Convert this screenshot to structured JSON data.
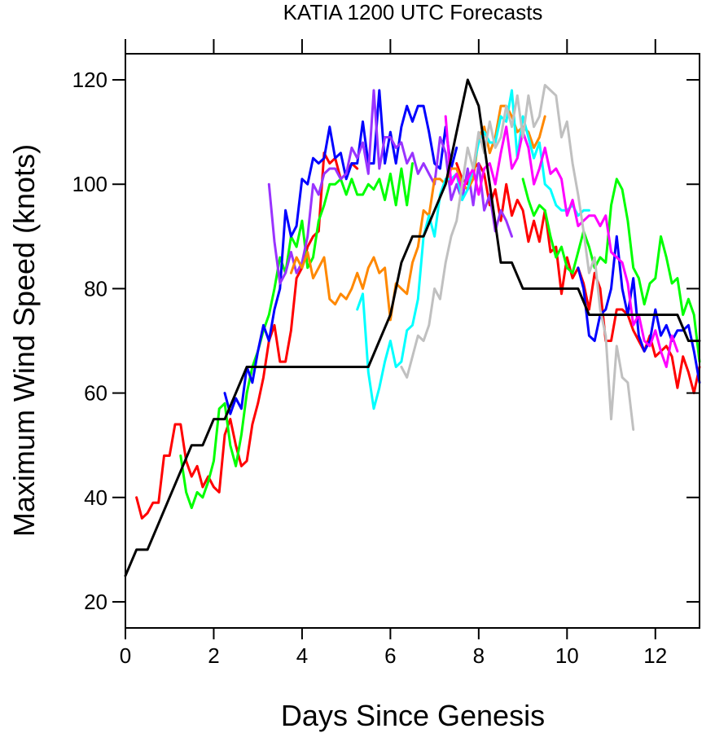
{
  "chart_data": {
    "type": "line",
    "title": "KATIA 1200 UTC Forecasts",
    "xlabel": "Days Since Genesis",
    "ylabel": "Maximum Wind Speed (knots)",
    "xlim": [
      0,
      13
    ],
    "ylim": [
      15,
      125
    ],
    "xticks": [
      0,
      2,
      4,
      6,
      8,
      10,
      12
    ],
    "yticks": [
      20,
      40,
      60,
      80,
      100,
      120
    ],
    "xtick_labels": [
      "0",
      "2",
      "4",
      "6",
      "8",
      "10",
      "12"
    ],
    "ytick_labels": [
      "20",
      "40",
      "60",
      "80",
      "100",
      "120"
    ],
    "grid": false,
    "legend": "none",
    "series": [
      {
        "color": "#000000",
        "role": "best-track",
        "x": [
          0,
          0.25,
          0.5,
          0.75,
          1.0,
          1.25,
          1.5,
          1.75,
          2.0,
          2.25,
          2.5,
          2.75,
          3.0,
          3.25,
          3.5,
          3.75,
          4.0,
          4.25,
          4.5,
          4.75,
          5.0,
          5.25,
          5.5,
          5.75,
          6.0,
          6.25,
          6.5,
          6.75,
          7.0,
          7.25,
          7.5,
          7.75,
          8.0,
          8.25,
          8.5,
          8.75,
          9.0,
          9.25,
          9.5,
          9.75,
          10.0,
          10.25,
          10.5,
          10.75,
          11.0,
          11.25,
          11.5,
          11.75,
          12.0,
          12.25,
          12.5,
          12.75,
          13.0
        ],
        "y": [
          25,
          30,
          30,
          35,
          40,
          45,
          50,
          50,
          55,
          55,
          60,
          65,
          65,
          65,
          65,
          65,
          65,
          65,
          65,
          65,
          65,
          65,
          65,
          70,
          75,
          85,
          90,
          90,
          95,
          100,
          110,
          120,
          115,
          100,
          85,
          85,
          80,
          80,
          80,
          80,
          80,
          80,
          75,
          75,
          75,
          75,
          75,
          75,
          75,
          75,
          75,
          70,
          70
        ]
      },
      {
        "color": "#ff0000",
        "x": [
          0.25,
          0.375,
          0.5,
          0.625,
          0.75,
          0.875,
          1.0,
          1.125,
          1.25,
          1.375,
          1.5,
          1.625,
          1.75,
          1.875,
          2.0,
          2.125,
          2.25,
          2.375,
          2.5,
          2.625,
          2.75,
          2.875,
          3.0,
          3.125,
          3.25,
          3.375,
          3.5,
          3.625,
          3.75,
          3.875,
          4.0,
          4.125,
          4.25,
          4.375,
          4.5
        ],
        "y": [
          40,
          36,
          37,
          39,
          39,
          48,
          48,
          54,
          54,
          47,
          44,
          46,
          42,
          44,
          42,
          41,
          52,
          55,
          50,
          46,
          47,
          54,
          58,
          63,
          70,
          73,
          66,
          66,
          72,
          82,
          84,
          88,
          90,
          91,
          106
        ]
      },
      {
        "color": "#ff0000",
        "x": [
          4.5,
          4.625,
          4.75,
          4.875,
          5.0,
          5.125,
          5.25
        ],
        "y": [
          106,
          104,
          105,
          101,
          102,
          104,
          103
        ]
      },
      {
        "color": "#ff0000",
        "x": [
          7.5,
          7.625,
          7.75,
          7.875,
          8.0,
          8.125,
          8.25,
          8.375,
          8.5,
          8.625,
          8.75,
          8.875,
          9.0,
          9.125,
          9.25,
          9.375,
          9.5,
          9.625,
          9.75,
          9.875,
          10.0,
          10.125,
          10.25,
          10.375,
          10.5,
          10.625,
          10.75
        ],
        "y": [
          104,
          101,
          100,
          103,
          104,
          102,
          96,
          99,
          93,
          100,
          94,
          97,
          95,
          89,
          93,
          89,
          95,
          87,
          88,
          79,
          86,
          82,
          84,
          81,
          76,
          83,
          80
        ]
      },
      {
        "color": "#ff0000",
        "x": [
          10.75,
          10.875,
          11.0,
          11.125,
          11.25,
          11.375,
          11.5,
          11.625,
          11.75,
          11.875,
          12.0,
          12.125,
          12.25,
          12.375,
          12.5,
          12.625,
          12.75,
          12.875,
          13.0
        ],
        "y": [
          80,
          70,
          70,
          76,
          76,
          75,
          72,
          70,
          68,
          71,
          67,
          68,
          69,
          67,
          61,
          67,
          64,
          60,
          65
        ]
      },
      {
        "color": "#00ff00",
        "x": [
          1.25,
          1.375,
          1.5,
          1.625,
          1.75,
          1.875,
          2.0,
          2.125,
          2.25,
          2.375,
          2.5,
          2.625,
          2.75,
          2.875,
          3.0,
          3.125,
          3.25,
          3.375,
          3.5,
          3.625,
          3.75,
          3.875,
          4.0,
          4.125,
          4.25,
          4.375,
          4.5,
          4.625,
          4.75,
          4.875,
          5.0,
          5.125,
          5.25,
          5.375,
          5.5,
          5.625,
          5.75,
          5.875,
          6.0,
          6.125,
          6.25,
          6.375,
          6.5
        ],
        "y": [
          48,
          41,
          38,
          41,
          40,
          43,
          47,
          57,
          58,
          50,
          46,
          52,
          60,
          65,
          68,
          72,
          75,
          80,
          86,
          83,
          90,
          88,
          93,
          84,
          86,
          93,
          96,
          100,
          100,
          101,
          98,
          101,
          98,
          98,
          100,
          99,
          101,
          97,
          102,
          96,
          103,
          96,
          104
        ]
      },
      {
        "color": "#00ff00",
        "x": [
          9.0,
          9.125,
          9.25,
          9.375,
          9.5,
          9.625,
          9.75,
          9.875,
          10.0,
          10.125,
          10.25,
          10.375,
          10.5,
          10.625,
          10.75,
          10.875,
          11.0,
          11.125,
          11.25,
          11.375,
          11.5,
          11.625,
          11.75,
          11.875,
          12.0,
          12.125,
          12.25,
          12.375,
          12.5,
          12.625,
          12.75,
          12.875,
          13.0
        ],
        "y": [
          101,
          97,
          94,
          96,
          95,
          90,
          86,
          88,
          84,
          83,
          87,
          91,
          88,
          84,
          86,
          85,
          96,
          101,
          99,
          93,
          84,
          82,
          77,
          81,
          82,
          90,
          86,
          81,
          82,
          75,
          78,
          75,
          66
        ]
      },
      {
        "color": "#0000ff",
        "x": [
          2.25,
          2.375,
          2.5,
          2.625,
          2.75,
          2.875,
          3.0,
          3.125,
          3.25,
          3.375,
          3.5,
          3.625,
          3.75,
          3.875,
          4.0,
          4.125,
          4.25,
          4.375,
          4.5,
          4.625,
          4.75,
          4.875,
          5.0,
          5.125,
          5.25,
          5.375,
          5.5,
          5.625,
          5.75,
          5.875,
          6.0,
          6.125,
          6.25,
          6.375,
          6.5,
          6.625,
          6.75,
          6.875,
          7.0,
          7.125,
          7.25,
          7.375,
          7.5
        ],
        "y": [
          60,
          56,
          59,
          57,
          65,
          62,
          68,
          73,
          70,
          76,
          80,
          95,
          90,
          92,
          101,
          100,
          105,
          104,
          105,
          111,
          105,
          106,
          101,
          104,
          104,
          112,
          104,
          104,
          118,
          104,
          110,
          104,
          111,
          115,
          112,
          115,
          115,
          110,
          104,
          103,
          111,
          103,
          107
        ]
      },
      {
        "color": "#0000ff",
        "x": [
          10.25,
          10.375,
          10.5,
          10.625,
          10.75,
          10.875,
          11.0,
          11.125,
          11.25,
          11.375,
          11.5,
          11.625,
          11.75,
          11.875,
          12.0,
          12.125,
          12.25,
          12.375,
          12.5,
          12.625,
          12.75,
          12.875,
          13.0
        ],
        "y": [
          84,
          80,
          71,
          70,
          75,
          76,
          80,
          90,
          80,
          75,
          82,
          71,
          68,
          70,
          76,
          71,
          73,
          70,
          72,
          72,
          73,
          68,
          62
        ]
      },
      {
        "color": "#9933ff",
        "x": [
          3.25,
          3.375,
          3.5,
          3.625,
          3.75,
          3.875,
          4.0,
          4.125,
          4.25,
          4.375,
          4.5,
          4.625,
          4.75,
          4.875,
          5.0,
          5.125,
          5.25,
          5.375,
          5.5,
          5.625,
          5.75,
          5.875,
          6.0,
          6.125,
          6.25,
          6.375,
          6.5,
          6.625,
          6.75,
          6.875,
          7.0,
          7.125,
          7.25,
          7.375,
          7.5,
          7.625,
          7.75,
          7.875,
          8.0,
          8.125,
          8.25,
          8.375,
          8.5,
          8.625,
          8.75
        ],
        "y": [
          100,
          89,
          81,
          83,
          87,
          83,
          85,
          90,
          100,
          98,
          102,
          103,
          103,
          101,
          102,
          107,
          105,
          108,
          102,
          118,
          103,
          109,
          109,
          107,
          108,
          104,
          106,
          102,
          104,
          102,
          100,
          109,
          106,
          97,
          100,
          97,
          103,
          96,
          104,
          95,
          98,
          91,
          95,
          93,
          90
        ]
      },
      {
        "color": "#ff8800",
        "x": [
          3.75,
          3.875,
          4.0,
          4.125,
          4.25,
          4.375,
          4.5,
          4.625,
          4.75,
          4.875,
          5.0,
          5.125,
          5.25,
          5.375,
          5.5,
          5.625,
          5.75,
          5.875,
          6.0,
          6.125,
          6.25,
          6.375,
          6.5,
          6.625,
          6.75,
          6.875,
          7.0,
          7.125,
          7.25,
          7.375,
          7.5,
          7.625,
          7.75,
          7.875,
          8.0,
          8.125,
          8.25,
          8.375,
          8.5,
          8.625,
          8.75,
          8.875,
          9.0,
          9.125,
          9.25,
          9.375,
          9.5
        ],
        "y": [
          83,
          86,
          84,
          87,
          82,
          84,
          86,
          78,
          77,
          79,
          78,
          80,
          83,
          80,
          84,
          86,
          83,
          84,
          74,
          81,
          80,
          79,
          85,
          88,
          95,
          94,
          101,
          101,
          100,
          103,
          103,
          100,
          99,
          101,
          109,
          111,
          106,
          109,
          115,
          115,
          113,
          110,
          111,
          110,
          107,
          109,
          113
        ]
      },
      {
        "color": "#00ffff",
        "x": [
          5.25,
          5.375,
          5.5,
          5.625,
          5.75,
          5.875,
          6.0,
          6.125,
          6.25,
          6.375,
          6.5,
          6.625,
          6.75,
          6.875,
          7.0,
          7.125,
          7.25,
          7.375,
          7.5,
          7.625,
          7.75,
          7.875,
          8.0,
          8.125,
          8.25,
          8.375,
          8.5,
          8.625,
          8.75,
          8.875,
          9.0,
          9.125,
          9.25,
          9.375,
          9.5,
          9.625,
          9.75,
          9.875,
          10.0,
          10.125,
          10.25,
          10.375,
          10.5
        ],
        "y": [
          76,
          79,
          64,
          57,
          61,
          66,
          70,
          65,
          66,
          72,
          73,
          78,
          90,
          94,
          90,
          98,
          101,
          101,
          102,
          97,
          99,
          103,
          108,
          110,
          108,
          108,
          113,
          112,
          118,
          105,
          113,
          109,
          105,
          108,
          100,
          99,
          96,
          95,
          95,
          96,
          94,
          95,
          95
        ]
      },
      {
        "color": "#ff00ff",
        "x": [
          7.25,
          7.375,
          7.5,
          7.625,
          7.75,
          7.875,
          8.0,
          8.125,
          8.25,
          8.375,
          8.5,
          8.625,
          8.75,
          8.875,
          9.0,
          9.125,
          9.25,
          9.375,
          9.5,
          9.625,
          9.75,
          9.875,
          10.0,
          10.125,
          10.25,
          10.375,
          10.5,
          10.625,
          10.75,
          10.875,
          11.0,
          11.125,
          11.25,
          11.375,
          11.5,
          11.625,
          11.75,
          11.875,
          12.0,
          12.125,
          12.25,
          12.375,
          12.5
        ],
        "y": [
          113,
          100,
          102,
          99,
          101,
          103,
          98,
          103,
          104,
          100,
          106,
          111,
          103,
          105,
          110,
          107,
          100,
          103,
          107,
          102,
          103,
          101,
          94,
          97,
          92,
          93,
          94,
          94,
          92,
          94,
          87,
          86,
          85,
          81,
          73,
          75,
          70,
          69,
          72,
          68,
          65,
          71,
          68
        ]
      },
      {
        "color": "#c0c0c0",
        "x": [
          6.25,
          6.375,
          6.5,
          6.625,
          6.75,
          6.875,
          7.0,
          7.125,
          7.25,
          7.375,
          7.5,
          7.625,
          7.75,
          7.875,
          8.0,
          8.125,
          8.25,
          8.375,
          8.5,
          8.625,
          8.75,
          8.875,
          9.0,
          9.125,
          9.25,
          9.375,
          9.5,
          9.625,
          9.75,
          9.875,
          10.0,
          10.125,
          10.25,
          10.375,
          10.5,
          10.625,
          10.75,
          10.875,
          11.0,
          11.125,
          11.25,
          11.375,
          11.5
        ],
        "y": [
          65,
          63,
          67,
          71,
          70,
          73,
          80,
          78,
          85,
          90,
          93,
          100,
          107,
          103,
          110,
          106,
          112,
          107,
          109,
          115,
          111,
          117,
          109,
          117,
          111,
          113,
          119,
          118,
          117,
          109,
          112,
          104,
          98,
          91,
          83,
          86,
          76,
          71,
          55,
          69,
          63,
          62,
          53
        ]
      }
    ]
  }
}
